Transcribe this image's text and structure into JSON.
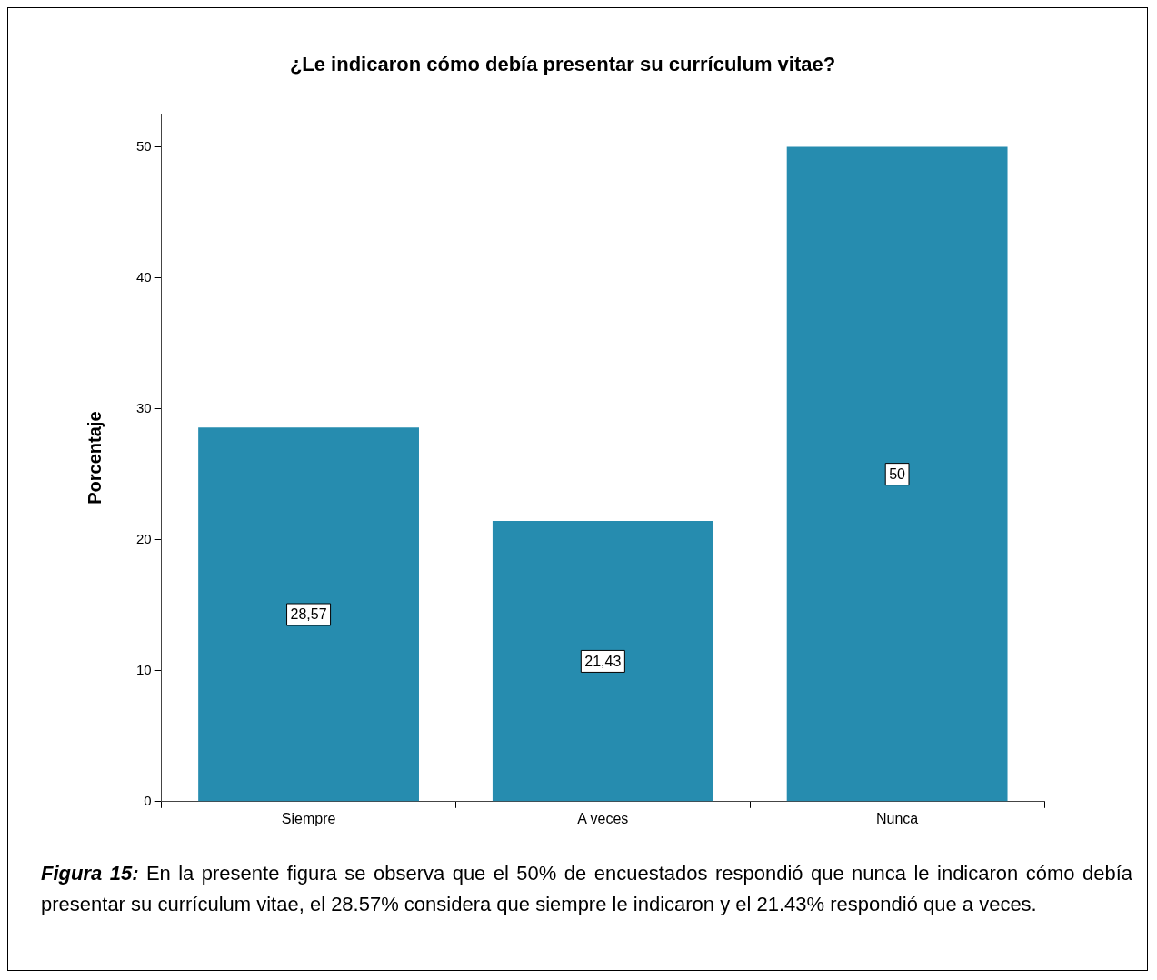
{
  "chart_data": {
    "type": "bar",
    "title": "¿Le indicaron cómo debía presentar su currículum vitae?",
    "ylabel": "Porcentaje",
    "categories": [
      "Siempre",
      "A veces",
      "Nunca"
    ],
    "values": [
      28.57,
      21.43,
      50
    ],
    "color": "#268caf",
    "value_labels": [
      "28,57",
      "21,43",
      "50"
    ],
    "ylim": [
      0,
      52.5
    ],
    "yticks": [
      0,
      10,
      20,
      30,
      40,
      50
    ],
    "grid": false,
    "legend": false,
    "annotations": [
      "Figura 15:",
      "En la presente figura se observa que el 50% de encuestados respondió que nunca le indicaron cómo debía presentar su currículum vitae, el 28.57% considera que siempre le indicaron y el 21.43% respondió que a veces."
    ]
  }
}
